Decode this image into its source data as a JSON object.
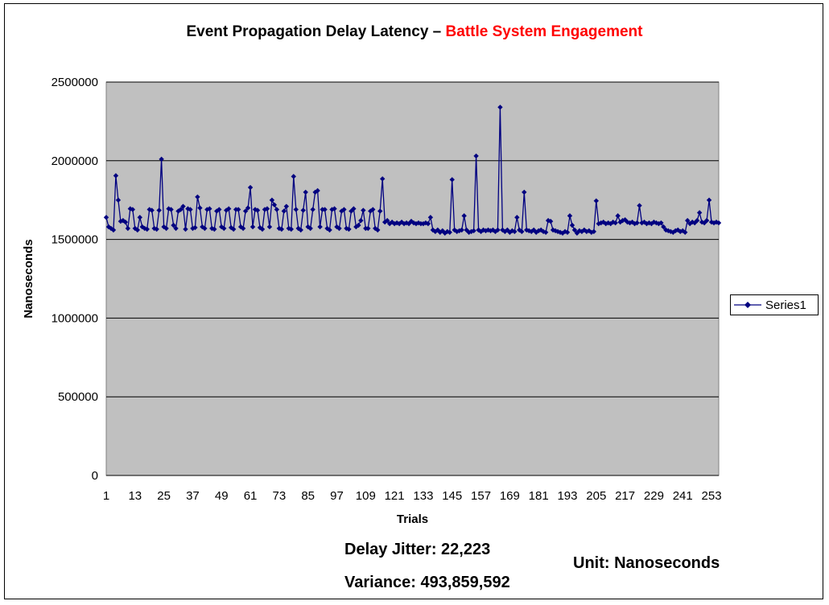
{
  "title": {
    "part1": "Event Propagation Delay Latency – ",
    "part2": "Battle System Engagement"
  },
  "colors": {
    "plot_bg": "#c0c0c0",
    "series": "#000080",
    "title_accent": "#ff0000",
    "grid": "#000000"
  },
  "notes": {
    "jitter": "Delay Jitter: 22,223",
    "variance": "Variance: 493,859,592",
    "unit": "Unit: Nanoseconds"
  },
  "chart_data": {
    "type": "line",
    "marker": "diamond",
    "xlabel": "Trials",
    "ylabel": "Nanoseconds",
    "ylim": [
      0,
      2500000
    ],
    "yticks": [
      0,
      500000,
      1000000,
      1500000,
      2000000,
      2500000
    ],
    "xlim": [
      1,
      256
    ],
    "xticks": [
      1,
      13,
      25,
      37,
      49,
      61,
      73,
      85,
      97,
      109,
      121,
      133,
      145,
      157,
      169,
      181,
      193,
      205,
      217,
      229,
      241,
      253
    ],
    "grid": "horizontal",
    "legend_position": "right",
    "series": [
      {
        "name": "Series1",
        "points": [
          [
            1,
            1640000
          ],
          [
            2,
            1580000
          ],
          [
            3,
            1570000
          ],
          [
            4,
            1560000
          ],
          [
            5,
            1905000
          ],
          [
            6,
            1750000
          ],
          [
            7,
            1615000
          ],
          [
            8,
            1620000
          ],
          [
            9,
            1610000
          ],
          [
            10,
            1570000
          ],
          [
            11,
            1695000
          ],
          [
            12,
            1690000
          ],
          [
            13,
            1570000
          ],
          [
            14,
            1560000
          ],
          [
            15,
            1640000
          ],
          [
            16,
            1580000
          ],
          [
            17,
            1570000
          ],
          [
            18,
            1565000
          ],
          [
            19,
            1690000
          ],
          [
            20,
            1685000
          ],
          [
            21,
            1570000
          ],
          [
            22,
            1565000
          ],
          [
            23,
            1685000
          ],
          [
            24,
            2010000
          ],
          [
            25,
            1580000
          ],
          [
            26,
            1570000
          ],
          [
            27,
            1695000
          ],
          [
            28,
            1690000
          ],
          [
            29,
            1590000
          ],
          [
            30,
            1570000
          ],
          [
            31,
            1680000
          ],
          [
            32,
            1690000
          ],
          [
            33,
            1710000
          ],
          [
            34,
            1565000
          ],
          [
            35,
            1695000
          ],
          [
            36,
            1690000
          ],
          [
            37,
            1570000
          ],
          [
            38,
            1575000
          ],
          [
            39,
            1770000
          ],
          [
            40,
            1700000
          ],
          [
            41,
            1580000
          ],
          [
            42,
            1570000
          ],
          [
            43,
            1690000
          ],
          [
            44,
            1695000
          ],
          [
            45,
            1570000
          ],
          [
            46,
            1565000
          ],
          [
            47,
            1680000
          ],
          [
            48,
            1690000
          ],
          [
            49,
            1580000
          ],
          [
            50,
            1570000
          ],
          [
            51,
            1685000
          ],
          [
            52,
            1695000
          ],
          [
            53,
            1575000
          ],
          [
            54,
            1565000
          ],
          [
            55,
            1690000
          ],
          [
            56,
            1690000
          ],
          [
            57,
            1580000
          ],
          [
            58,
            1570000
          ],
          [
            59,
            1680000
          ],
          [
            60,
            1700000
          ],
          [
            61,
            1830000
          ],
          [
            62,
            1580000
          ],
          [
            63,
            1690000
          ],
          [
            64,
            1685000
          ],
          [
            65,
            1575000
          ],
          [
            66,
            1565000
          ],
          [
            67,
            1690000
          ],
          [
            68,
            1695000
          ],
          [
            69,
            1580000
          ],
          [
            70,
            1750000
          ],
          [
            71,
            1720000
          ],
          [
            72,
            1690000
          ],
          [
            73,
            1570000
          ],
          [
            74,
            1565000
          ],
          [
            75,
            1680000
          ],
          [
            76,
            1710000
          ],
          [
            77,
            1570000
          ],
          [
            78,
            1565000
          ],
          [
            79,
            1900000
          ],
          [
            80,
            1690000
          ],
          [
            81,
            1570000
          ],
          [
            82,
            1560000
          ],
          [
            83,
            1685000
          ],
          [
            84,
            1800000
          ],
          [
            85,
            1580000
          ],
          [
            86,
            1570000
          ],
          [
            87,
            1690000
          ],
          [
            88,
            1800000
          ],
          [
            89,
            1810000
          ],
          [
            90,
            1580000
          ],
          [
            91,
            1690000
          ],
          [
            92,
            1690000
          ],
          [
            93,
            1570000
          ],
          [
            94,
            1560000
          ],
          [
            95,
            1690000
          ],
          [
            96,
            1695000
          ],
          [
            97,
            1580000
          ],
          [
            98,
            1570000
          ],
          [
            99,
            1680000
          ],
          [
            100,
            1690000
          ],
          [
            101,
            1570000
          ],
          [
            102,
            1565000
          ],
          [
            103,
            1680000
          ],
          [
            104,
            1695000
          ],
          [
            105,
            1580000
          ],
          [
            106,
            1590000
          ],
          [
            107,
            1620000
          ],
          [
            108,
            1685000
          ],
          [
            109,
            1570000
          ],
          [
            110,
            1570000
          ],
          [
            111,
            1680000
          ],
          [
            112,
            1690000
          ],
          [
            113,
            1570000
          ],
          [
            114,
            1560000
          ],
          [
            115,
            1680000
          ],
          [
            116,
            1885000
          ],
          [
            117,
            1610000
          ],
          [
            118,
            1620000
          ],
          [
            119,
            1600000
          ],
          [
            120,
            1610000
          ],
          [
            121,
            1600000
          ],
          [
            122,
            1605000
          ],
          [
            123,
            1600000
          ],
          [
            124,
            1610000
          ],
          [
            125,
            1600000
          ],
          [
            126,
            1605000
          ],
          [
            127,
            1600000
          ],
          [
            128,
            1615000
          ],
          [
            129,
            1605000
          ],
          [
            130,
            1600000
          ],
          [
            131,
            1605000
          ],
          [
            132,
            1600000
          ],
          [
            133,
            1600000
          ],
          [
            134,
            1605000
          ],
          [
            135,
            1600000
          ],
          [
            136,
            1640000
          ],
          [
            137,
            1560000
          ],
          [
            138,
            1550000
          ],
          [
            139,
            1560000
          ],
          [
            140,
            1545000
          ],
          [
            141,
            1555000
          ],
          [
            142,
            1540000
          ],
          [
            143,
            1550000
          ],
          [
            144,
            1545000
          ],
          [
            145,
            1880000
          ],
          [
            146,
            1560000
          ],
          [
            147,
            1550000
          ],
          [
            148,
            1555000
          ],
          [
            149,
            1560000
          ],
          [
            150,
            1650000
          ],
          [
            151,
            1560000
          ],
          [
            152,
            1545000
          ],
          [
            153,
            1550000
          ],
          [
            154,
            1555000
          ],
          [
            155,
            2030000
          ],
          [
            156,
            1560000
          ],
          [
            157,
            1550000
          ],
          [
            158,
            1560000
          ],
          [
            159,
            1555000
          ],
          [
            160,
            1560000
          ],
          [
            161,
            1555000
          ],
          [
            162,
            1560000
          ],
          [
            163,
            1550000
          ],
          [
            164,
            1560000
          ],
          [
            165,
            2340000
          ],
          [
            166,
            1560000
          ],
          [
            167,
            1550000
          ],
          [
            168,
            1560000
          ],
          [
            169,
            1545000
          ],
          [
            170,
            1555000
          ],
          [
            171,
            1550000
          ],
          [
            172,
            1640000
          ],
          [
            173,
            1560000
          ],
          [
            174,
            1550000
          ],
          [
            175,
            1800000
          ],
          [
            176,
            1560000
          ],
          [
            177,
            1555000
          ],
          [
            178,
            1550000
          ],
          [
            179,
            1560000
          ],
          [
            180,
            1545000
          ],
          [
            181,
            1555000
          ],
          [
            182,
            1560000
          ],
          [
            183,
            1550000
          ],
          [
            184,
            1545000
          ],
          [
            185,
            1620000
          ],
          [
            186,
            1615000
          ],
          [
            187,
            1560000
          ],
          [
            188,
            1555000
          ],
          [
            189,
            1550000
          ],
          [
            190,
            1545000
          ],
          [
            191,
            1540000
          ],
          [
            192,
            1550000
          ],
          [
            193,
            1545000
          ],
          [
            194,
            1650000
          ],
          [
            195,
            1590000
          ],
          [
            196,
            1560000
          ],
          [
            197,
            1540000
          ],
          [
            198,
            1555000
          ],
          [
            199,
            1550000
          ],
          [
            200,
            1560000
          ],
          [
            201,
            1550000
          ],
          [
            202,
            1555000
          ],
          [
            203,
            1545000
          ],
          [
            204,
            1550000
          ],
          [
            205,
            1745000
          ],
          [
            206,
            1600000
          ],
          [
            207,
            1605000
          ],
          [
            208,
            1610000
          ],
          [
            209,
            1600000
          ],
          [
            210,
            1605000
          ],
          [
            211,
            1600000
          ],
          [
            212,
            1610000
          ],
          [
            213,
            1605000
          ],
          [
            214,
            1650000
          ],
          [
            215,
            1610000
          ],
          [
            216,
            1620000
          ],
          [
            217,
            1625000
          ],
          [
            218,
            1610000
          ],
          [
            219,
            1605000
          ],
          [
            220,
            1610000
          ],
          [
            221,
            1600000
          ],
          [
            222,
            1605000
          ],
          [
            223,
            1715000
          ],
          [
            224,
            1605000
          ],
          [
            225,
            1610000
          ],
          [
            226,
            1600000
          ],
          [
            227,
            1605000
          ],
          [
            228,
            1600000
          ],
          [
            229,
            1610000
          ],
          [
            230,
            1605000
          ],
          [
            231,
            1600000
          ],
          [
            232,
            1605000
          ],
          [
            233,
            1580000
          ],
          [
            234,
            1560000
          ],
          [
            235,
            1555000
          ],
          [
            236,
            1550000
          ],
          [
            237,
            1545000
          ],
          [
            238,
            1555000
          ],
          [
            239,
            1560000
          ],
          [
            240,
            1550000
          ],
          [
            241,
            1555000
          ],
          [
            242,
            1545000
          ],
          [
            243,
            1620000
          ],
          [
            244,
            1600000
          ],
          [
            245,
            1610000
          ],
          [
            246,
            1605000
          ],
          [
            247,
            1620000
          ],
          [
            248,
            1670000
          ],
          [
            249,
            1610000
          ],
          [
            250,
            1605000
          ],
          [
            251,
            1620000
          ],
          [
            252,
            1750000
          ],
          [
            253,
            1610000
          ],
          [
            254,
            1605000
          ],
          [
            255,
            1610000
          ],
          [
            256,
            1605000
          ]
        ]
      }
    ]
  }
}
